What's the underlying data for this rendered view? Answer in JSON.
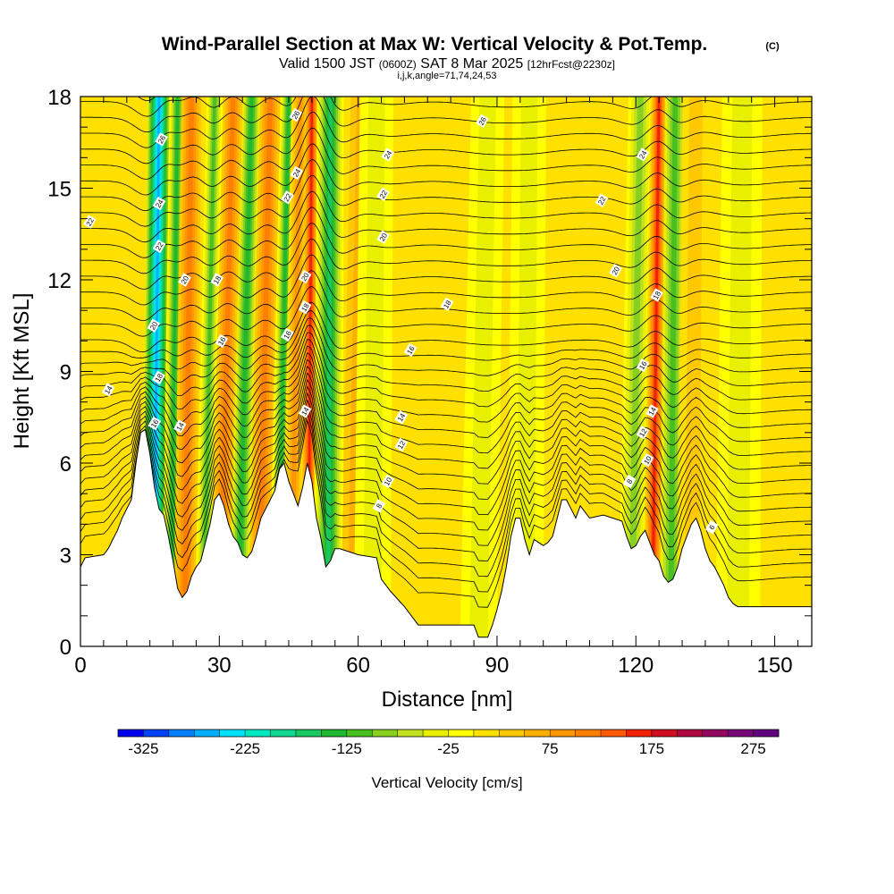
{
  "title": {
    "main": "Wind-Parallel Section at Max W: Vertical Velocity & Pot.Temp.",
    "copyright": "(C)",
    "valid_a": "Valid 1500 JST",
    "valid_b": "(0600Z)",
    "valid_c": "SAT 8 Mar 2025",
    "valid_d": "[12hrFcst@2230z]",
    "indices": "i,j,k,angle=71,74,24,53"
  },
  "chart_data": {
    "type": "heatmap",
    "xlabel": "Distance [nm]",
    "ylabel": "Height [Kft MSL]",
    "xlim": [
      0,
      158
    ],
    "ylim": [
      0,
      18
    ],
    "x_ticks": [
      0,
      30,
      60,
      90,
      120,
      150
    ],
    "y_ticks": [
      0,
      3,
      6,
      9,
      12,
      15,
      18
    ],
    "colorbar": {
      "label": "Vertical Velocity [cm/s]",
      "min": -350,
      "max": 300,
      "step": 25,
      "tick_values": [
        -325,
        -225,
        -125,
        -25,
        75,
        175,
        275
      ],
      "tick_labels": [
        "-325",
        "-225",
        "-125",
        "-25",
        "75",
        "175",
        "275"
      ],
      "colors": [
        "#0000f0",
        "#0044f5",
        "#0080ff",
        "#00b0ff",
        "#00e0ff",
        "#00e8c0",
        "#10d890",
        "#18c860",
        "#20b830",
        "#48c020",
        "#88d020",
        "#c0e020",
        "#e8f000",
        "#ffff00",
        "#ffe000",
        "#ffc800",
        "#ffb000",
        "#ff9800",
        "#ff8000",
        "#ff5a00",
        "#f02000",
        "#d01020",
        "#b00840",
        "#900860",
        "#780878",
        "#600080"
      ]
    },
    "background_velocity": 0,
    "velocity_bands": [
      {
        "x": 16.5,
        "x_top": 19,
        "w": 1.3,
        "v": 300
      },
      {
        "x": 15.8,
        "x_top": 17,
        "w": 1.8,
        "v": -260
      },
      {
        "x": 19.5,
        "x_top": 21,
        "w": 1.2,
        "v": -140
      },
      {
        "x": 22.5,
        "x_top": 24,
        "w": 1.5,
        "v": 110
      },
      {
        "x": 26.5,
        "x_top": 29,
        "w": 1.2,
        "v": -120
      },
      {
        "x": 30,
        "x_top": 33,
        "w": 1.4,
        "v": 110
      },
      {
        "x": 34,
        "x_top": 37,
        "w": 1.3,
        "v": -130
      },
      {
        "x": 38.5,
        "x_top": 41,
        "w": 1.5,
        "v": 100
      },
      {
        "x": 42.5,
        "x_top": 45,
        "w": 1.2,
        "v": -140
      },
      {
        "x": 45.5,
        "x_top": 47.5,
        "w": 1.3,
        "v": 90
      },
      {
        "x": 50.5,
        "x_top": 51.5,
        "w": 1.3,
        "v": 300
      },
      {
        "x": 49.2,
        "x_top": 50,
        "w": 1.0,
        "v": 150
      },
      {
        "x": 53.5,
        "x_top": 54,
        "w": 2.0,
        "v": -170
      },
      {
        "x": 59,
        "x_top": 61,
        "w": 1.8,
        "v": 60
      },
      {
        "x": 63,
        "x_top": 64,
        "w": 2.5,
        "v": -50
      },
      {
        "x": 86,
        "x_top": 88,
        "w": 2.5,
        "v": -40
      },
      {
        "x": 96,
        "x_top": 97,
        "w": 2.5,
        "v": -40
      },
      {
        "x": 119,
        "x_top": 121,
        "w": 1.8,
        "v": -90
      },
      {
        "x": 123.5,
        "x_top": 125,
        "w": 1.3,
        "v": 170
      },
      {
        "x": 127.5,
        "x_top": 128.5,
        "w": 1.5,
        "v": -110
      },
      {
        "x": 132,
        "x_top": 133,
        "w": 2.0,
        "v": 40
      },
      {
        "x": 142,
        "x_top": 143,
        "w": 3.0,
        "v": -40
      }
    ],
    "terrain_height": [
      [
        0,
        2.6
      ],
      [
        1,
        2.9
      ],
      [
        5,
        3.0
      ],
      [
        6,
        3.2
      ],
      [
        7,
        3.5
      ],
      [
        8,
        3.8
      ],
      [
        9,
        4.2
      ],
      [
        11,
        4.8
      ],
      [
        12,
        6.0
      ],
      [
        13,
        7.0
      ],
      [
        14,
        7.1
      ],
      [
        15,
        6.3
      ],
      [
        16,
        5.2
      ],
      [
        17,
        4.5
      ],
      [
        18,
        4.3
      ],
      [
        19,
        3.6
      ],
      [
        20,
        2.8
      ],
      [
        21,
        1.9
      ],
      [
        22,
        1.6
      ],
      [
        23,
        1.8
      ],
      [
        24,
        2.3
      ],
      [
        25,
        2.6
      ],
      [
        26,
        2.8
      ],
      [
        27,
        3.4
      ],
      [
        28,
        4.0
      ],
      [
        29,
        4.8
      ],
      [
        30,
        5.0
      ],
      [
        31,
        4.6
      ],
      [
        32,
        4.0
      ],
      [
        33,
        3.6
      ],
      [
        34,
        3.4
      ],
      [
        35,
        3.0
      ],
      [
        36,
        2.9
      ],
      [
        37,
        3.1
      ],
      [
        38,
        3.6
      ],
      [
        39,
        4.2
      ],
      [
        40,
        4.5
      ],
      [
        41,
        4.8
      ],
      [
        42,
        5.1
      ],
      [
        43,
        5.8
      ],
      [
        44,
        6.0
      ],
      [
        45,
        5.4
      ],
      [
        46,
        5.0
      ],
      [
        47,
        4.6
      ],
      [
        48,
        5.2
      ],
      [
        49,
        6.0
      ],
      [
        50,
        5.4
      ],
      [
        51,
        4.2
      ],
      [
        52,
        3.5
      ],
      [
        53,
        2.6
      ],
      [
        54,
        2.8
      ],
      [
        55,
        3.2
      ],
      [
        56,
        3.2
      ],
      [
        60,
        3.0
      ],
      [
        64,
        2.9
      ],
      [
        65,
        2.2
      ],
      [
        67,
        1.8
      ],
      [
        70,
        1.3
      ],
      [
        72,
        0.9
      ],
      [
        73,
        0.7
      ],
      [
        85,
        0.7
      ],
      [
        86,
        0.3
      ],
      [
        88,
        0.3
      ],
      [
        89,
        0.7
      ],
      [
        90,
        1.2
      ],
      [
        91,
        1.8
      ],
      [
        92,
        2.6
      ],
      [
        93,
        3.6
      ],
      [
        94,
        4.2
      ],
      [
        95,
        4.2
      ],
      [
        96,
        3.5
      ],
      [
        97,
        3.0
      ],
      [
        98,
        3.5
      ],
      [
        99,
        3.4
      ],
      [
        100,
        3.3
      ],
      [
        101,
        3.4
      ],
      [
        102,
        3.6
      ],
      [
        103,
        4.2
      ],
      [
        104,
        4.8
      ],
      [
        105,
        4.8
      ],
      [
        106,
        4.5
      ],
      [
        107,
        4.2
      ],
      [
        108,
        4.6
      ],
      [
        110,
        4.2
      ],
      [
        113,
        4.3
      ],
      [
        115,
        4.2
      ],
      [
        117,
        4.1
      ],
      [
        118,
        3.6
      ],
      [
        119,
        3.2
      ],
      [
        120,
        3.3
      ],
      [
        121,
        3.6
      ],
      [
        122,
        3.8
      ],
      [
        123,
        3.4
      ],
      [
        124,
        3.0
      ],
      [
        125,
        2.8
      ],
      [
        126,
        2.3
      ],
      [
        127,
        2.1
      ],
      [
        128,
        2.2
      ],
      [
        129,
        2.6
      ],
      [
        130,
        3.2
      ],
      [
        131,
        3.6
      ],
      [
        132,
        4.0
      ],
      [
        133,
        4.2
      ],
      [
        134,
        3.8
      ],
      [
        135,
        3.2
      ],
      [
        136,
        2.8
      ],
      [
        137,
        2.6
      ],
      [
        138,
        2.3
      ],
      [
        139,
        2.0
      ],
      [
        140,
        1.6
      ],
      [
        141,
        1.4
      ],
      [
        142,
        1.3
      ],
      [
        146,
        1.3
      ],
      [
        158,
        1.3
      ]
    ],
    "theta_contour_labels": [
      {
        "text": "22",
        "x": 2,
        "y": 13.9
      },
      {
        "text": "14",
        "x": 6,
        "y": 8.4
      },
      {
        "text": "26",
        "x": 17.5,
        "y": 16.6
      },
      {
        "text": "24",
        "x": 17,
        "y": 14.5
      },
      {
        "text": "22",
        "x": 17,
        "y": 13.1
      },
      {
        "text": "20",
        "x": 15.8,
        "y": 10.5
      },
      {
        "text": "18",
        "x": 16.9,
        "y": 8.8
      },
      {
        "text": "16",
        "x": 16,
        "y": 7.3
      },
      {
        "text": "14",
        "x": 21.5,
        "y": 7.2
      },
      {
        "text": "20",
        "x": 22.5,
        "y": 12.0
      },
      {
        "text": "18",
        "x": 29.5,
        "y": 12.0
      },
      {
        "text": "16",
        "x": 30.5,
        "y": 10.0
      },
      {
        "text": "26",
        "x": 46.5,
        "y": 17.4
      },
      {
        "text": "24",
        "x": 46.7,
        "y": 15.5
      },
      {
        "text": "22",
        "x": 44.7,
        "y": 14.7
      },
      {
        "text": "20",
        "x": 48.5,
        "y": 12.1
      },
      {
        "text": "18",
        "x": 48.5,
        "y": 11.1
      },
      {
        "text": "16",
        "x": 44.7,
        "y": 10.2
      },
      {
        "text": "14",
        "x": 48.5,
        "y": 7.7
      },
      {
        "text": "24",
        "x": 66.4,
        "y": 16.1
      },
      {
        "text": "22",
        "x": 65.4,
        "y": 14.8
      },
      {
        "text": "20",
        "x": 65.4,
        "y": 13.4
      },
      {
        "text": "18",
        "x": 79.2,
        "y": 11.2
      },
      {
        "text": "16",
        "x": 71.3,
        "y": 9.7
      },
      {
        "text": "14",
        "x": 69.3,
        "y": 7.5
      },
      {
        "text": "12",
        "x": 69.3,
        "y": 6.6
      },
      {
        "text": "10",
        "x": 66.4,
        "y": 5.4
      },
      {
        "text": "8",
        "x": 64.5,
        "y": 4.6
      },
      {
        "text": "26",
        "x": 86.8,
        "y": 17.2
      },
      {
        "text": "22",
        "x": 112.6,
        "y": 14.6
      },
      {
        "text": "20",
        "x": 115.6,
        "y": 12.3
      },
      {
        "text": "24",
        "x": 121.5,
        "y": 16.1
      },
      {
        "text": "18",
        "x": 124.5,
        "y": 11.5
      },
      {
        "text": "16",
        "x": 121.5,
        "y": 9.2
      },
      {
        "text": "14",
        "x": 123.5,
        "y": 7.7
      },
      {
        "text": "12",
        "x": 121.5,
        "y": 7.0
      },
      {
        "text": "10",
        "x": 122.5,
        "y": 6.1
      },
      {
        "text": "8",
        "x": 118.6,
        "y": 5.4
      },
      {
        "text": "6",
        "x": 136.4,
        "y": 3.9
      }
    ]
  }
}
